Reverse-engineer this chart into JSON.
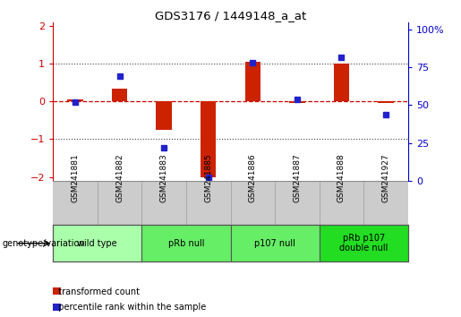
{
  "title": "GDS3176 / 1449148_a_at",
  "samples": [
    "GSM241881",
    "GSM241882",
    "GSM241883",
    "GSM241885",
    "GSM241886",
    "GSM241887",
    "GSM241888",
    "GSM241927"
  ],
  "red_values": [
    0.05,
    0.35,
    -0.75,
    -2.0,
    1.05,
    -0.05,
    1.0,
    -0.05
  ],
  "blue_values": [
    52,
    69,
    22,
    2,
    78,
    54,
    82,
    44
  ],
  "groups": [
    {
      "label": "wild type",
      "start": 0,
      "end": 2,
      "color": "#aaffaa"
    },
    {
      "label": "pRb null",
      "start": 2,
      "end": 4,
      "color": "#66ee66"
    },
    {
      "label": "p107 null",
      "start": 4,
      "end": 6,
      "color": "#66ee66"
    },
    {
      "label": "pRb p107\ndouble null",
      "start": 6,
      "end": 8,
      "color": "#22dd22"
    }
  ],
  "ylim_left": [
    -2.1,
    2.1
  ],
  "ylim_right": [
    0,
    105
  ],
  "yticks_left": [
    -2,
    -1,
    0,
    1,
    2
  ],
  "yticks_right": [
    0,
    25,
    50,
    75,
    100
  ],
  "ytick_labels_right": [
    "0",
    "25",
    "50",
    "75",
    "100%"
  ],
  "red_color": "#cc2200",
  "blue_color": "#2222cc",
  "hline_color": "#cc0000",
  "dot_line_color": "#444444",
  "bar_width": 0.35,
  "left_label_color": "#cc0000",
  "right_label_color": "#0000cc",
  "legend_red_label": "transformed count",
  "legend_blue_label": "percentile rank within the sample",
  "genotype_label": "genotype/variation",
  "tick_area_bg": "#cccccc",
  "plot_bg": "#ffffff"
}
